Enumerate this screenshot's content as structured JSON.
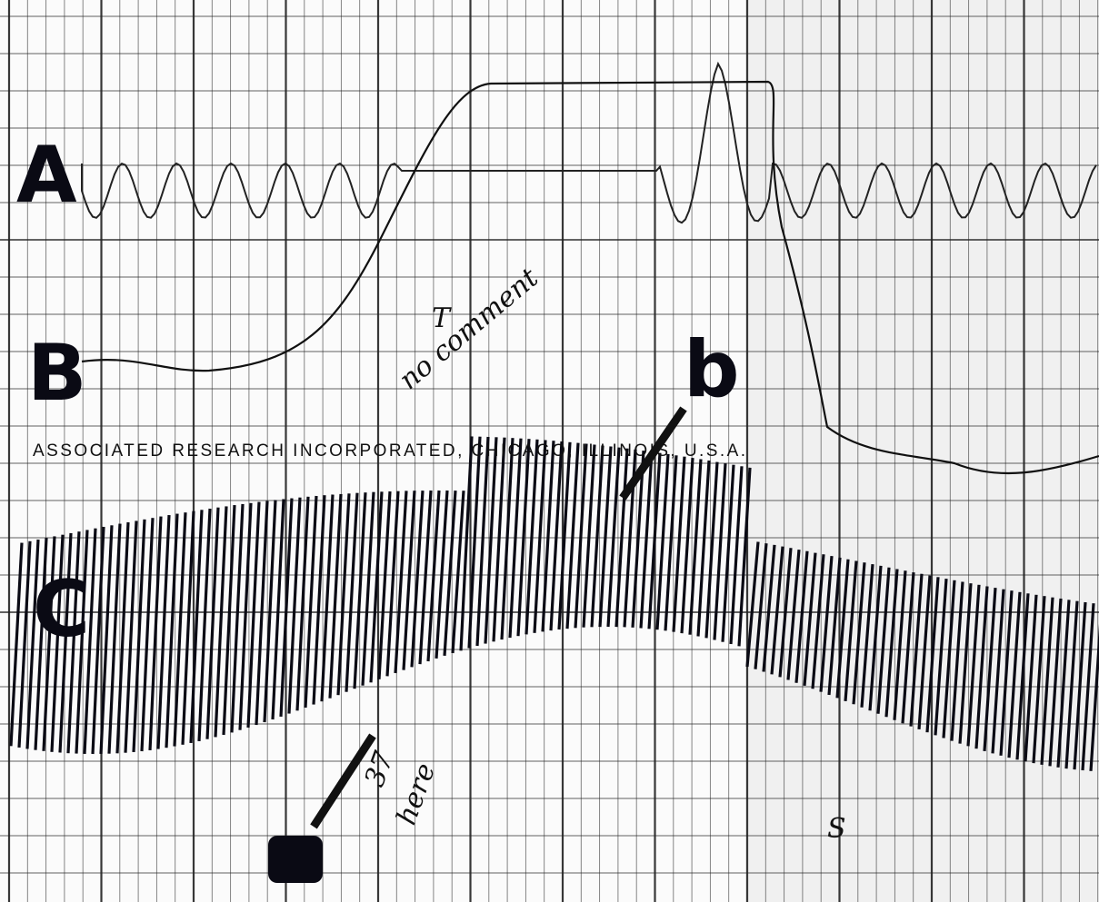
{
  "channels": {
    "a": "A",
    "b": "B",
    "c": "C"
  },
  "marker": "b",
  "imprint": "ASSOCIATED RESEARCH INCORPORATED, CHICAGO, ILLINOIS, U.S.A.",
  "notes": {
    "t": "T",
    "comment": "no comment",
    "count": "37",
    "here": "here",
    "s": "S"
  }
}
